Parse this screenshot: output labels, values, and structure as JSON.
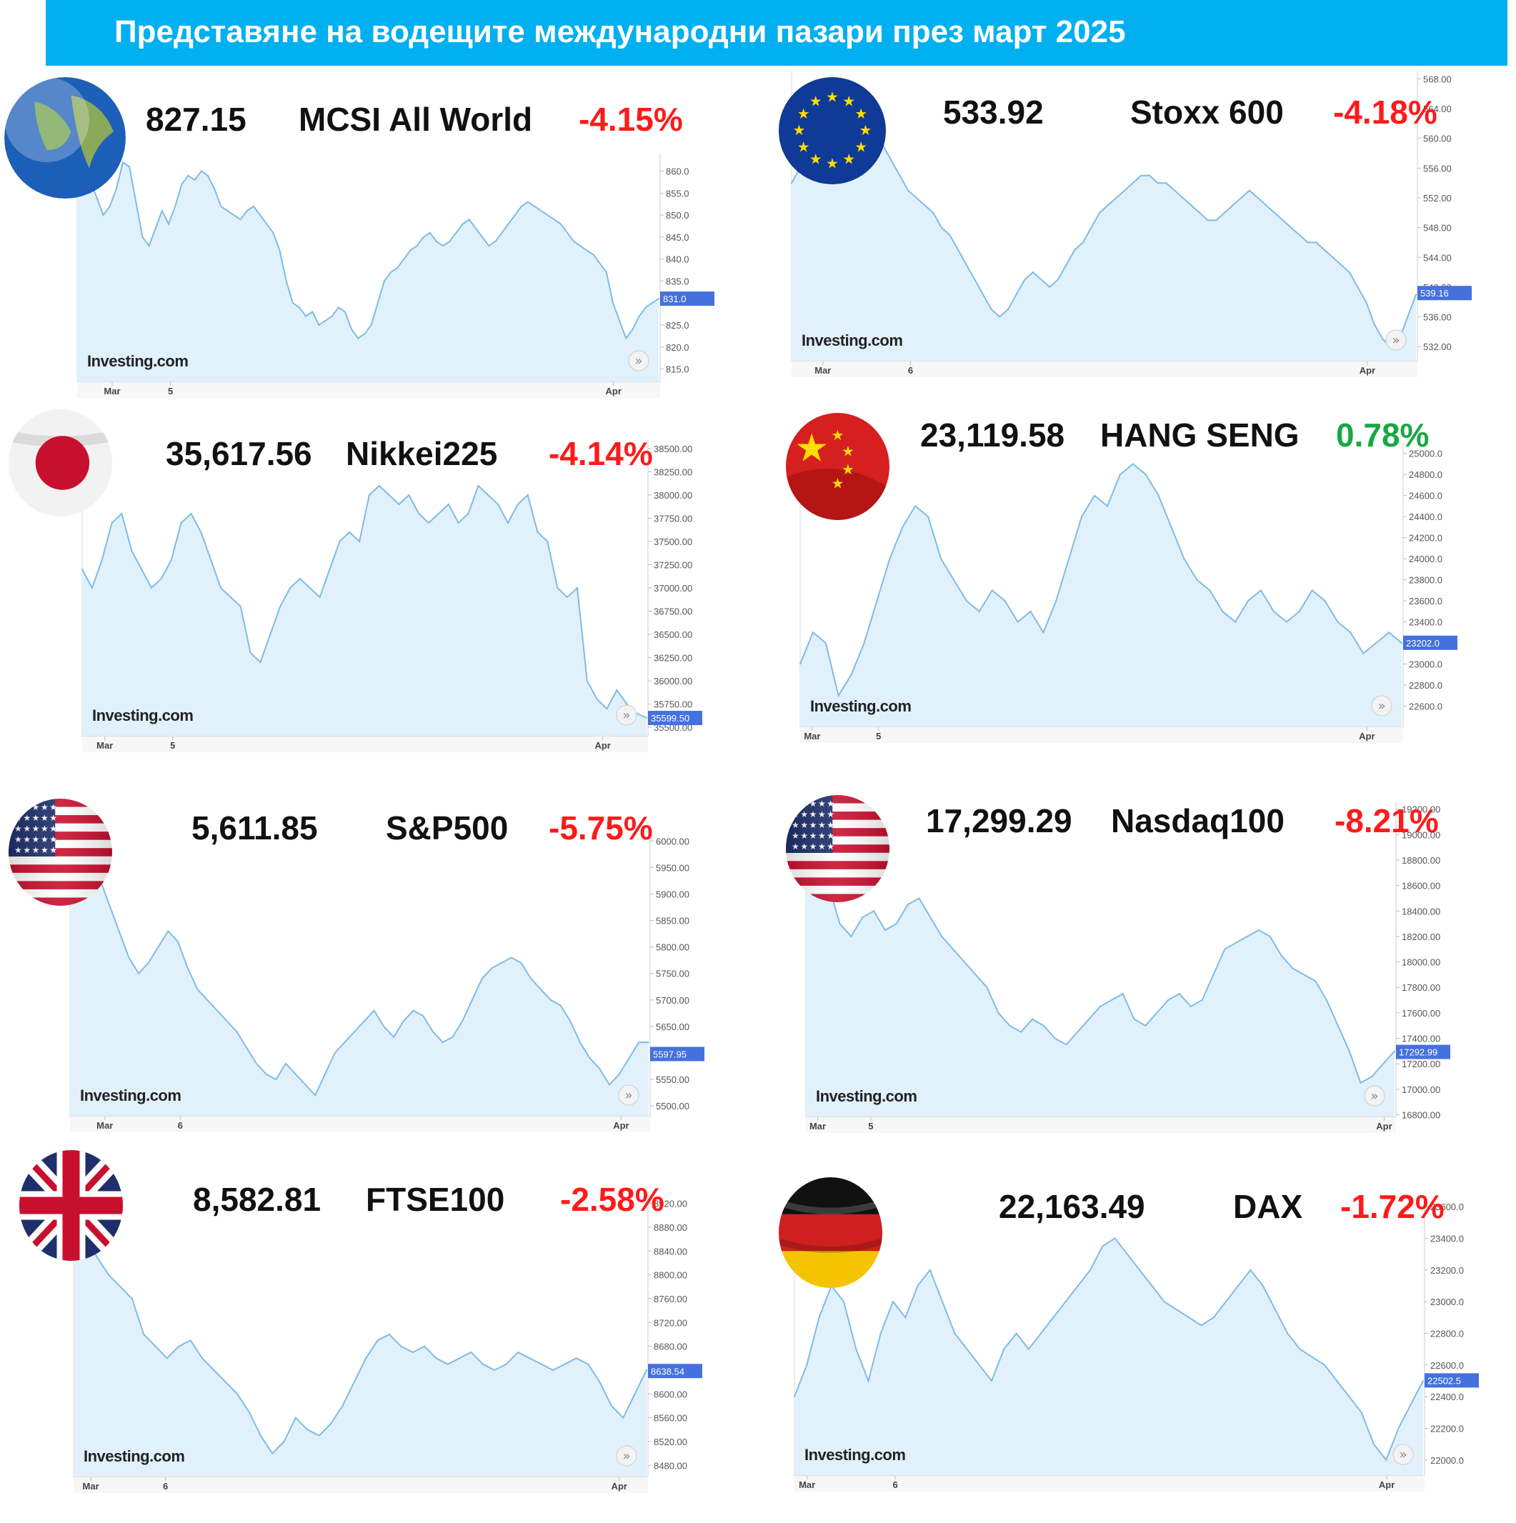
{
  "title": "Представяне на водещите международни пазари през март 2025",
  "watermark": "Investing.com",
  "chart_data": [
    {
      "type": "line",
      "name": "MCSI All World",
      "last": "827.15",
      "change": "-4.15%",
      "change_sign": "neg",
      "flag": "globe-icon",
      "ylim": [
        812,
        864
      ],
      "yticks": [
        "860.0",
        "855.0",
        "850.0",
        "845.0",
        "840.0",
        "835.0",
        "825.0",
        "820.0",
        "815.0"
      ],
      "yticks_values": [
        860,
        855,
        850,
        845,
        840,
        835,
        825,
        820,
        815
      ],
      "marker": "831.0",
      "marker_value": 831,
      "xticks": [
        "Mar",
        "5",
        "Apr"
      ],
      "xticks_pos": [
        0.06,
        0.16,
        0.92
      ],
      "values": [
        860,
        861,
        858,
        854,
        850,
        852,
        856,
        862,
        861,
        853,
        845,
        843,
        847,
        851,
        848,
        852,
        857,
        859,
        858,
        860,
        859,
        856,
        852,
        851,
        850,
        849,
        851,
        852,
        850,
        848,
        846,
        842,
        835,
        830,
        829,
        827,
        828,
        825,
        826,
        827,
        829,
        828,
        824,
        822,
        823,
        825,
        830,
        835,
        837,
        838,
        840,
        842,
        843,
        845,
        846,
        844,
        843,
        844,
        846,
        848,
        849,
        847,
        845,
        843,
        844,
        846,
        848,
        850,
        852,
        853,
        852,
        851,
        850,
        849,
        848,
        846,
        844,
        843,
        842,
        841,
        839,
        837,
        830,
        826,
        822,
        824,
        827,
        829,
        830,
        831
      ]
    },
    {
      "type": "line",
      "name": "Stoxx 600",
      "last": "533.92",
      "change": "-4.18%",
      "change_sign": "neg",
      "flag": "eu-flag-icon",
      "ylim": [
        530,
        569
      ],
      "yticks": [
        "568.00",
        "564.00",
        "560.00",
        "556.00",
        "552.00",
        "548.00",
        "544.00",
        "540.00",
        "536.00",
        "532.00"
      ],
      "yticks_values": [
        568,
        564,
        560,
        556,
        552,
        548,
        544,
        540,
        536,
        532
      ],
      "marker": "539.16",
      "marker_value": 539.2,
      "xticks": [
        "Mar",
        "6",
        "Apr"
      ],
      "xticks_pos": [
        0.05,
        0.19,
        0.92
      ],
      "values": [
        554,
        556,
        558,
        560,
        561,
        560,
        559,
        557,
        555,
        556,
        558,
        559,
        557,
        555,
        553,
        552,
        551,
        550,
        548,
        547,
        545,
        543,
        541,
        539,
        537,
        536,
        537,
        539,
        541,
        542,
        541,
        540,
        541,
        543,
        545,
        546,
        548,
        550,
        551,
        552,
        553,
        554,
        555,
        555,
        554,
        554,
        553,
        552,
        551,
        550,
        549,
        549,
        550,
        551,
        552,
        553,
        552,
        551,
        550,
        549,
        548,
        547,
        546,
        546,
        545,
        544,
        543,
        542,
        540,
        538,
        535,
        533,
        532,
        533,
        536,
        539
      ]
    },
    {
      "type": "line",
      "name": "Nikkei225",
      "last": "35,617.56",
      "change": "-4.14%",
      "change_sign": "neg",
      "flag": "japan-flag-icon",
      "ylim": [
        35400,
        38600
      ],
      "yticks": [
        "38500.00",
        "38250.00",
        "38000.00",
        "37750.00",
        "37500.00",
        "37250.00",
        "37000.00",
        "36750.00",
        "36500.00",
        "36250.00",
        "36000.00",
        "35750.00",
        "35500.00"
      ],
      "yticks_values": [
        38500,
        38250,
        38000,
        37750,
        37500,
        37250,
        37000,
        36750,
        36500,
        36250,
        36000,
        35750,
        35500
      ],
      "marker": "35599.50",
      "marker_value": 35599.5,
      "xticks": [
        "Mar",
        "5",
        "Apr"
      ],
      "xticks_pos": [
        0.04,
        0.16,
        0.92
      ],
      "values": [
        37200,
        37000,
        37300,
        37700,
        37800,
        37400,
        37200,
        37000,
        37100,
        37300,
        37700,
        37800,
        37600,
        37300,
        37000,
        36900,
        36800,
        36300,
        36200,
        36500,
        36800,
        37000,
        37100,
        37000,
        36900,
        37200,
        37500,
        37600,
        37500,
        38000,
        38100,
        38000,
        37900,
        38000,
        37800,
        37700,
        37800,
        37900,
        37700,
        37800,
        38100,
        38000,
        37900,
        37700,
        37900,
        38000,
        37600,
        37500,
        37000,
        36900,
        37000,
        36000,
        35800,
        35700,
        35900,
        35750,
        35650,
        35600
      ]
    },
    {
      "type": "line",
      "name": "HANG SENG",
      "last": "23,119.58",
      "change": "0.78%",
      "change_sign": "pos",
      "flag": "china-flag-icon",
      "ylim": [
        22400,
        25100
      ],
      "yticks": [
        "25000.0",
        "24800.0",
        "24600.0",
        "24400.0",
        "24200.0",
        "24000.0",
        "23800.0",
        "23600.0",
        "23400.0",
        "23000.0",
        "22800.0",
        "22600.0"
      ],
      "yticks_values": [
        25000,
        24800,
        24600,
        24400,
        24200,
        24000,
        23800,
        23600,
        23400,
        23000,
        22800,
        22600
      ],
      "marker": "23202.0",
      "marker_value": 23202,
      "xticks": [
        "Mar",
        "5",
        "Apr"
      ],
      "xticks_pos": [
        0.02,
        0.13,
        0.94
      ],
      "values": [
        23000,
        23300,
        23200,
        22700,
        22900,
        23200,
        23600,
        24000,
        24300,
        24500,
        24400,
        24000,
        23800,
        23600,
        23500,
        23700,
        23600,
        23400,
        23500,
        23300,
        23600,
        24000,
        24400,
        24600,
        24500,
        24800,
        24900,
        24800,
        24600,
        24300,
        24000,
        23800,
        23700,
        23500,
        23400,
        23600,
        23700,
        23500,
        23400,
        23500,
        23700,
        23600,
        23400,
        23300,
        23100,
        23200,
        23300,
        23200
      ]
    },
    {
      "type": "line",
      "name": "S&P500",
      "last": "5,611.85",
      "change": "-5.75%",
      "change_sign": "neg",
      "flag": "usa-flag-icon",
      "ylim": [
        5480,
        6030
      ],
      "yticks": [
        "6000.00",
        "5950.00",
        "5900.00",
        "5850.00",
        "5800.00",
        "5750.00",
        "5700.00",
        "5650.00",
        "5550.00",
        "5500.00"
      ],
      "yticks_values": [
        6000,
        5950,
        5900,
        5850,
        5800,
        5750,
        5700,
        5650,
        5550,
        5500
      ],
      "marker": "5597.95",
      "marker_value": 5598,
      "xticks": [
        "Mar",
        "6",
        "Apr"
      ],
      "xticks_pos": [
        0.06,
        0.19,
        0.95
      ],
      "values": [
        5950,
        5960,
        5970,
        5930,
        5880,
        5830,
        5780,
        5750,
        5770,
        5800,
        5830,
        5810,
        5760,
        5720,
        5700,
        5680,
        5660,
        5640,
        5610,
        5580,
        5560,
        5550,
        5580,
        5560,
        5540,
        5520,
        5560,
        5600,
        5620,
        5640,
        5660,
        5680,
        5650,
        5630,
        5660,
        5680,
        5670,
        5640,
        5620,
        5630,
        5660,
        5700,
        5740,
        5760,
        5770,
        5780,
        5770,
        5740,
        5720,
        5700,
        5690,
        5660,
        5620,
        5590,
        5570,
        5540,
        5560,
        5590,
        5620,
        5620
      ]
    },
    {
      "type": "line",
      "name": "Nasdaq100",
      "last": "17,299.29",
      "change": "-8.21%",
      "change_sign": "neg",
      "flag": "usa-flag-icon",
      "ylim": [
        16780,
        19260
      ],
      "yticks": [
        "19200.00",
        "19000.00",
        "18800.00",
        "18600.00",
        "18400.00",
        "18200.00",
        "18000.00",
        "17800.00",
        "17600.00",
        "17400.00",
        "17200.00",
        "17000.00",
        "16800.00"
      ],
      "yticks_values": [
        19200,
        19000,
        18800,
        18600,
        18400,
        18200,
        18000,
        17800,
        17600,
        17400,
        17200,
        17000,
        16800
      ],
      "marker": "17292.99",
      "marker_value": 17293,
      "xticks": [
        "Mar",
        "5",
        "Apr"
      ],
      "xticks_pos": [
        0.02,
        0.11,
        0.98
      ],
      "values": [
        18800,
        18700,
        18600,
        18300,
        18200,
        18350,
        18400,
        18250,
        18300,
        18450,
        18500,
        18350,
        18200,
        18100,
        18000,
        17900,
        17800,
        17600,
        17500,
        17450,
        17550,
        17500,
        17400,
        17350,
        17450,
        17550,
        17650,
        17700,
        17750,
        17550,
        17500,
        17600,
        17700,
        17750,
        17650,
        17700,
        17900,
        18100,
        18150,
        18200,
        18250,
        18200,
        18050,
        17950,
        17900,
        17850,
        17700,
        17500,
        17300,
        17050,
        17100,
        17200,
        17300
      ]
    },
    {
      "type": "line",
      "name": "FTSE100",
      "last": "8,582.81",
      "change": "-2.58%",
      "change_sign": "neg",
      "flag": "uk-flag-icon",
      "ylim": [
        8460,
        8940
      ],
      "yticks": [
        "8920.00",
        "8880.00",
        "8840.00",
        "8800.00",
        "8760.00",
        "8720.00",
        "8680.00",
        "8640.00",
        "8600.00",
        "8560.00",
        "8520.00",
        "8480.00"
      ],
      "yticks_values": [
        8920,
        8880,
        8840,
        8800,
        8760,
        8720,
        8680,
        8640,
        8600,
        8560,
        8520,
        8480
      ],
      "marker": "8638.54",
      "marker_value": 8638.5,
      "xticks": [
        "Mar",
        "6",
        "Apr"
      ],
      "xticks_pos": [
        0.03,
        0.16,
        0.95
      ],
      "values": [
        8850,
        8870,
        8830,
        8800,
        8780,
        8760,
        8700,
        8680,
        8660,
        8680,
        8690,
        8660,
        8640,
        8620,
        8600,
        8570,
        8530,
        8500,
        8520,
        8560,
        8540,
        8530,
        8550,
        8580,
        8620,
        8660,
        8690,
        8700,
        8680,
        8670,
        8680,
        8660,
        8650,
        8660,
        8670,
        8650,
        8640,
        8650,
        8670,
        8660,
        8650,
        8640,
        8650,
        8660,
        8650,
        8620,
        8580,
        8560,
        8600,
        8640
      ]
    },
    {
      "type": "line",
      "name": "DAX",
      "last": "22,163.49",
      "change": "-1.72%",
      "change_sign": "neg",
      "flag": "germany-flag-icon",
      "ylim": [
        21900,
        23650
      ],
      "yticks": [
        "23600.0",
        "23400.0",
        "23200.0",
        "23000.0",
        "22800.0",
        "22600.0",
        "22400.0",
        "22200.0",
        "22000.0"
      ],
      "yticks_values": [
        23600,
        23400,
        23200,
        23000,
        22800,
        22600,
        22400,
        22200,
        22000
      ],
      "marker": "22502.5",
      "marker_value": 22502.5,
      "xticks": [
        "Mar",
        "6",
        "Apr"
      ],
      "xticks_pos": [
        0.02,
        0.16,
        0.94
      ],
      "values": [
        22400,
        22600,
        22900,
        23100,
        23000,
        22700,
        22500,
        22800,
        23000,
        22900,
        23100,
        23200,
        23000,
        22800,
        22700,
        22600,
        22500,
        22700,
        22800,
        22700,
        22800,
        22900,
        23000,
        23100,
        23200,
        23350,
        23400,
        23300,
        23200,
        23100,
        23000,
        22950,
        22900,
        22850,
        22900,
        23000,
        23100,
        23200,
        23100,
        22950,
        22800,
        22700,
        22650,
        22600,
        22500,
        22400,
        22300,
        22100,
        22000,
        22200,
        22350,
        22500
      ]
    }
  ]
}
